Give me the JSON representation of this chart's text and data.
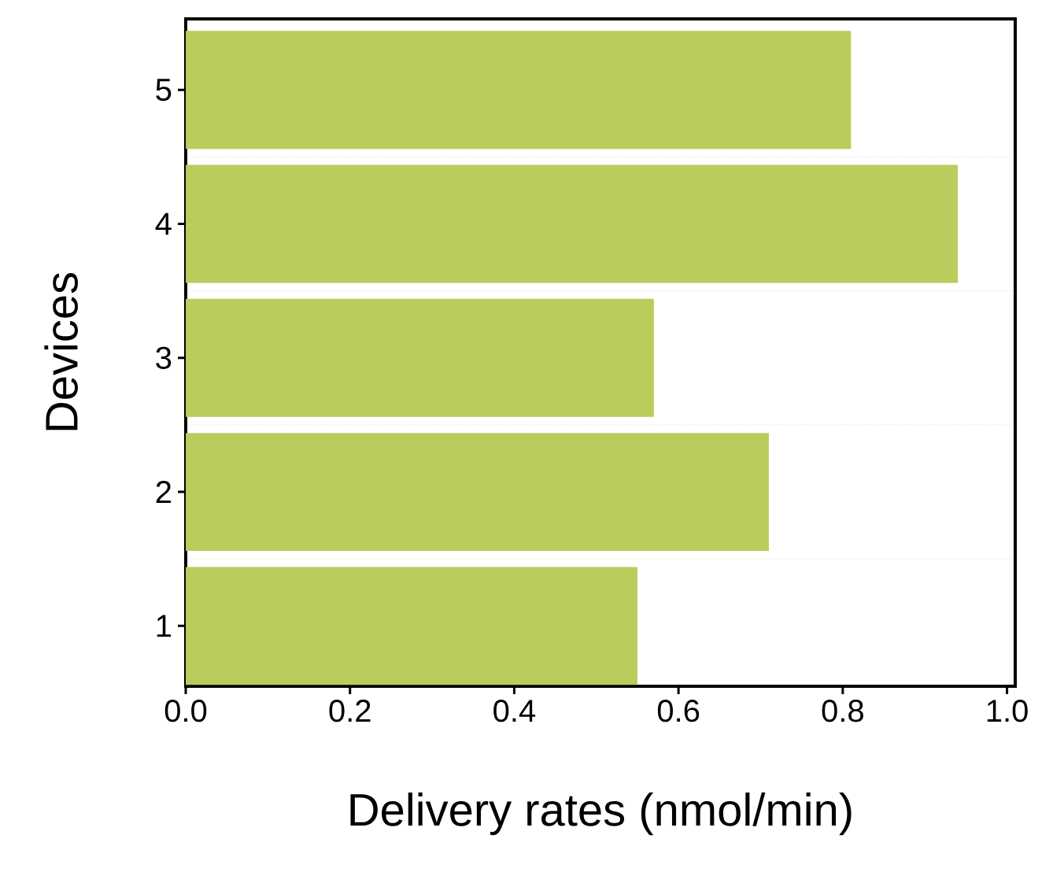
{
  "chart_data": {
    "type": "bar",
    "orientation": "horizontal",
    "xlabel": "Delivery rates (nmol/min)",
    "ylabel": "Devices",
    "categories": [
      "5",
      "4",
      "3",
      "2",
      "1"
    ],
    "values": [
      0.81,
      0.94,
      0.57,
      0.71,
      0.55
    ],
    "color": "#b9cc5c",
    "xlim": [
      0,
      1.01
    ],
    "xticks": [
      {
        "value": 0,
        "label": "0.0"
      },
      0.2,
      0.4,
      0.6,
      0.8,
      {
        "value": 1,
        "label": "1.0"
      }
    ],
    "grid": "y"
  }
}
